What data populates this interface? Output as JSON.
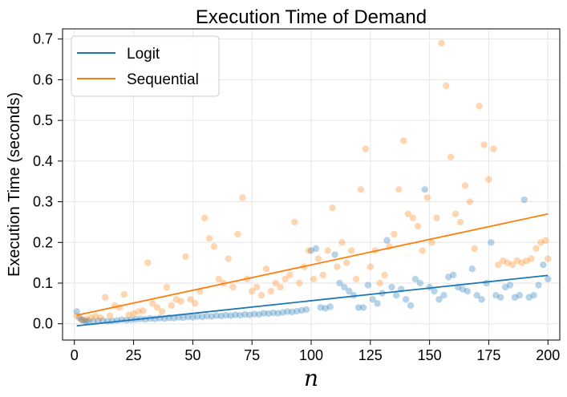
{
  "chart_data": {
    "type": "scatter",
    "title": "Execution Time of Demand",
    "xlabel": "n",
    "ylabel": "Execution Time (seconds)",
    "xlim": [
      -5,
      205
    ],
    "ylim": [
      -0.04,
      0.725
    ],
    "xticks": [
      0,
      25,
      50,
      75,
      100,
      125,
      150,
      175,
      200
    ],
    "yticks": [
      0.0,
      0.1,
      0.2,
      0.3,
      0.4,
      0.5,
      0.6,
      0.7
    ],
    "xtick_labels": [
      "0",
      "25",
      "50",
      "75",
      "100",
      "125",
      "150",
      "175",
      "200"
    ],
    "ytick_labels": [
      "0.0",
      "0.1",
      "0.2",
      "0.3",
      "0.4",
      "0.5",
      "0.6",
      "0.7"
    ],
    "grid": true,
    "legend_position": "top-left",
    "series": [
      {
        "name": "Logit",
        "color": "#1f77b4",
        "fit_line": {
          "x": [
            1,
            200
          ],
          "y": [
            -0.005,
            0.119
          ]
        },
        "points": [
          [
            1,
            0.03
          ],
          [
            2,
            0.015
          ],
          [
            3,
            0.01
          ],
          [
            4,
            0.008
          ],
          [
            5,
            0.006
          ],
          [
            6,
            0.007
          ],
          [
            8,
            0.006
          ],
          [
            10,
            0.007
          ],
          [
            12,
            0.008
          ],
          [
            14,
            0.006
          ],
          [
            16,
            0.007
          ],
          [
            18,
            0.008
          ],
          [
            20,
            0.01
          ],
          [
            22,
            0.009
          ],
          [
            24,
            0.01
          ],
          [
            26,
            0.011
          ],
          [
            28,
            0.012
          ],
          [
            30,
            0.011
          ],
          [
            32,
            0.013
          ],
          [
            34,
            0.012
          ],
          [
            36,
            0.014
          ],
          [
            38,
            0.013
          ],
          [
            40,
            0.015
          ],
          [
            42,
            0.014
          ],
          [
            44,
            0.016
          ],
          [
            46,
            0.015
          ],
          [
            48,
            0.017
          ],
          [
            50,
            0.016
          ],
          [
            52,
            0.018
          ],
          [
            54,
            0.017
          ],
          [
            56,
            0.019
          ],
          [
            58,
            0.018
          ],
          [
            60,
            0.02
          ],
          [
            62,
            0.019
          ],
          [
            64,
            0.021
          ],
          [
            66,
            0.02
          ],
          [
            68,
            0.022
          ],
          [
            70,
            0.021
          ],
          [
            72,
            0.023
          ],
          [
            74,
            0.022
          ],
          [
            76,
            0.024
          ],
          [
            78,
            0.023
          ],
          [
            80,
            0.026
          ],
          [
            82,
            0.025
          ],
          [
            84,
            0.027
          ],
          [
            86,
            0.026
          ],
          [
            88,
            0.028
          ],
          [
            90,
            0.03
          ],
          [
            92,
            0.029
          ],
          [
            94,
            0.031
          ],
          [
            96,
            0.033
          ],
          [
            98,
            0.035
          ],
          [
            100,
            0.18
          ],
          [
            102,
            0.185
          ],
          [
            104,
            0.04
          ],
          [
            106,
            0.038
          ],
          [
            108,
            0.042
          ],
          [
            110,
            0.17
          ],
          [
            112,
            0.1
          ],
          [
            114,
            0.09
          ],
          [
            116,
            0.08
          ],
          [
            118,
            0.07
          ],
          [
            120,
            0.04
          ],
          [
            122,
            0.04
          ],
          [
            124,
            0.095
          ],
          [
            126,
            0.06
          ],
          [
            128,
            0.05
          ],
          [
            130,
            0.075
          ],
          [
            132,
            0.205
          ],
          [
            134,
            0.09
          ],
          [
            136,
            0.07
          ],
          [
            138,
            0.085
          ],
          [
            140,
            0.06
          ],
          [
            142,
            0.045
          ],
          [
            144,
            0.11
          ],
          [
            146,
            0.1
          ],
          [
            148,
            0.33
          ],
          [
            150,
            0.09
          ],
          [
            152,
            0.08
          ],
          [
            154,
            0.06
          ],
          [
            156,
            0.07
          ],
          [
            158,
            0.115
          ],
          [
            160,
            0.12
          ],
          [
            162,
            0.09
          ],
          [
            164,
            0.085
          ],
          [
            166,
            0.08
          ],
          [
            168,
            0.135
          ],
          [
            170,
            0.07
          ],
          [
            172,
            0.06
          ],
          [
            174,
            0.1
          ],
          [
            176,
            0.2
          ],
          [
            178,
            0.07
          ],
          [
            180,
            0.065
          ],
          [
            182,
            0.09
          ],
          [
            184,
            0.095
          ],
          [
            186,
            0.065
          ],
          [
            188,
            0.07
          ],
          [
            190,
            0.305
          ],
          [
            192,
            0.065
          ],
          [
            194,
            0.07
          ],
          [
            196,
            0.095
          ],
          [
            198,
            0.145
          ],
          [
            200,
            0.11
          ]
        ]
      },
      {
        "name": "Sequential",
        "color": "#ff7f0e",
        "fit_line": {
          "x": [
            1,
            200
          ],
          "y": [
            0.021,
            0.27
          ]
        },
        "points": [
          [
            1,
            0.02
          ],
          [
            3,
            0.01
          ],
          [
            5,
            0.012
          ],
          [
            7,
            0.015
          ],
          [
            9,
            0.018
          ],
          [
            11,
            0.015
          ],
          [
            13,
            0.065
          ],
          [
            15,
            0.02
          ],
          [
            17,
            0.045
          ],
          [
            19,
            0.04
          ],
          [
            21,
            0.072
          ],
          [
            23,
            0.022
          ],
          [
            25,
            0.025
          ],
          [
            27,
            0.03
          ],
          [
            29,
            0.032
          ],
          [
            31,
            0.15
          ],
          [
            33,
            0.05
          ],
          [
            35,
            0.04
          ],
          [
            37,
            0.03
          ],
          [
            39,
            0.09
          ],
          [
            41,
            0.045
          ],
          [
            43,
            0.06
          ],
          [
            45,
            0.055
          ],
          [
            47,
            0.165
          ],
          [
            49,
            0.06
          ],
          [
            51,
            0.05
          ],
          [
            53,
            0.08
          ],
          [
            55,
            0.26
          ],
          [
            57,
            0.21
          ],
          [
            59,
            0.19
          ],
          [
            61,
            0.11
          ],
          [
            63,
            0.1
          ],
          [
            65,
            0.16
          ],
          [
            67,
            0.09
          ],
          [
            69,
            0.22
          ],
          [
            71,
            0.31
          ],
          [
            73,
            0.11
          ],
          [
            75,
            0.08
          ],
          [
            77,
            0.09
          ],
          [
            79,
            0.07
          ],
          [
            81,
            0.135
          ],
          [
            83,
            0.08
          ],
          [
            85,
            0.1
          ],
          [
            87,
            0.09
          ],
          [
            89,
            0.11
          ],
          [
            91,
            0.12
          ],
          [
            93,
            0.25
          ],
          [
            95,
            0.1
          ],
          [
            97,
            0.14
          ],
          [
            99,
            0.18
          ],
          [
            101,
            0.11
          ],
          [
            103,
            0.16
          ],
          [
            105,
            0.12
          ],
          [
            107,
            0.18
          ],
          [
            109,
            0.285
          ],
          [
            111,
            0.14
          ],
          [
            113,
            0.2
          ],
          [
            115,
            0.15
          ],
          [
            117,
            0.18
          ],
          [
            119,
            0.11
          ],
          [
            121,
            0.33
          ],
          [
            123,
            0.43
          ],
          [
            125,
            0.14
          ],
          [
            127,
            0.18
          ],
          [
            129,
            0.1
          ],
          [
            131,
            0.12
          ],
          [
            133,
            0.19
          ],
          [
            135,
            0.22
          ],
          [
            137,
            0.33
          ],
          [
            139,
            0.45
          ],
          [
            141,
            0.27
          ],
          [
            143,
            0.26
          ],
          [
            145,
            0.24
          ],
          [
            147,
            0.18
          ],
          [
            149,
            0.31
          ],
          [
            151,
            0.2
          ],
          [
            153,
            0.26
          ],
          [
            155,
            0.69
          ],
          [
            157,
            0.585
          ],
          [
            159,
            0.41
          ],
          [
            161,
            0.27
          ],
          [
            163,
            0.25
          ],
          [
            165,
            0.34
          ],
          [
            167,
            0.3
          ],
          [
            169,
            0.185
          ],
          [
            171,
            0.535
          ],
          [
            173,
            0.44
          ],
          [
            175,
            0.355
          ],
          [
            177,
            0.43
          ],
          [
            179,
            0.145
          ],
          [
            181,
            0.155
          ],
          [
            183,
            0.15
          ],
          [
            185,
            0.145
          ],
          [
            187,
            0.155
          ],
          [
            189,
            0.15
          ],
          [
            191,
            0.155
          ],
          [
            193,
            0.16
          ],
          [
            195,
            0.185
          ],
          [
            197,
            0.2
          ],
          [
            199,
            0.205
          ],
          [
            200,
            0.16
          ]
        ]
      }
    ]
  }
}
